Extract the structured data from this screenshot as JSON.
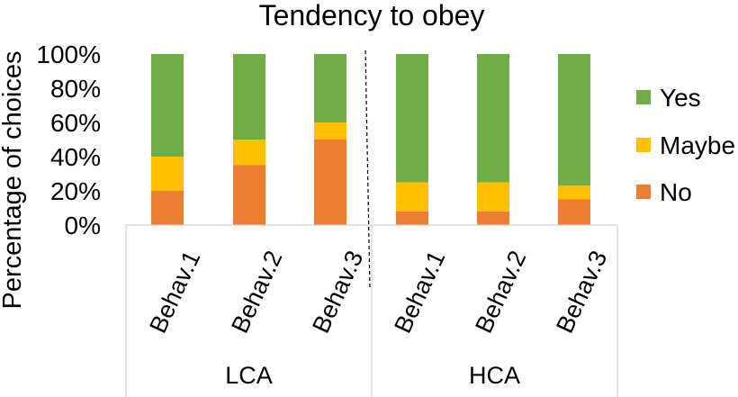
{
  "chart_data": {
    "type": "bar",
    "stacked": true,
    "title": "Tendency to obey",
    "ylabel": "Percentage of choices",
    "xlabel": "",
    "ylim": [
      0,
      100
    ],
    "yticks": [
      "0%",
      "20%",
      "40%",
      "60%",
      "80%",
      "100%"
    ],
    "yticks_values": [
      0,
      20,
      40,
      60,
      80,
      100
    ],
    "categories": [
      "Behav.1",
      "Behav.2",
      "Behav.3",
      "Behav.1",
      "Behav.2",
      "Behav.3"
    ],
    "groups": [
      {
        "label": "LCA",
        "category_indices": [
          0,
          1,
          2
        ]
      },
      {
        "label": "HCA",
        "category_indices": [
          3,
          4,
          5
        ]
      }
    ],
    "series": [
      {
        "name": "No",
        "color": "#ED7D31",
        "values": [
          20,
          35,
          50,
          8,
          8,
          15
        ]
      },
      {
        "name": "Maybe",
        "color": "#FFC000",
        "values": [
          20,
          15,
          10,
          17,
          17,
          8
        ]
      },
      {
        "name": "Yes",
        "color": "#70AD47",
        "values": [
          60,
          50,
          40,
          75,
          75,
          77
        ]
      }
    ],
    "legend_order": [
      "Yes",
      "Maybe",
      "No"
    ],
    "legend_position": "right",
    "grid": false,
    "group_separator": "dashed"
  }
}
